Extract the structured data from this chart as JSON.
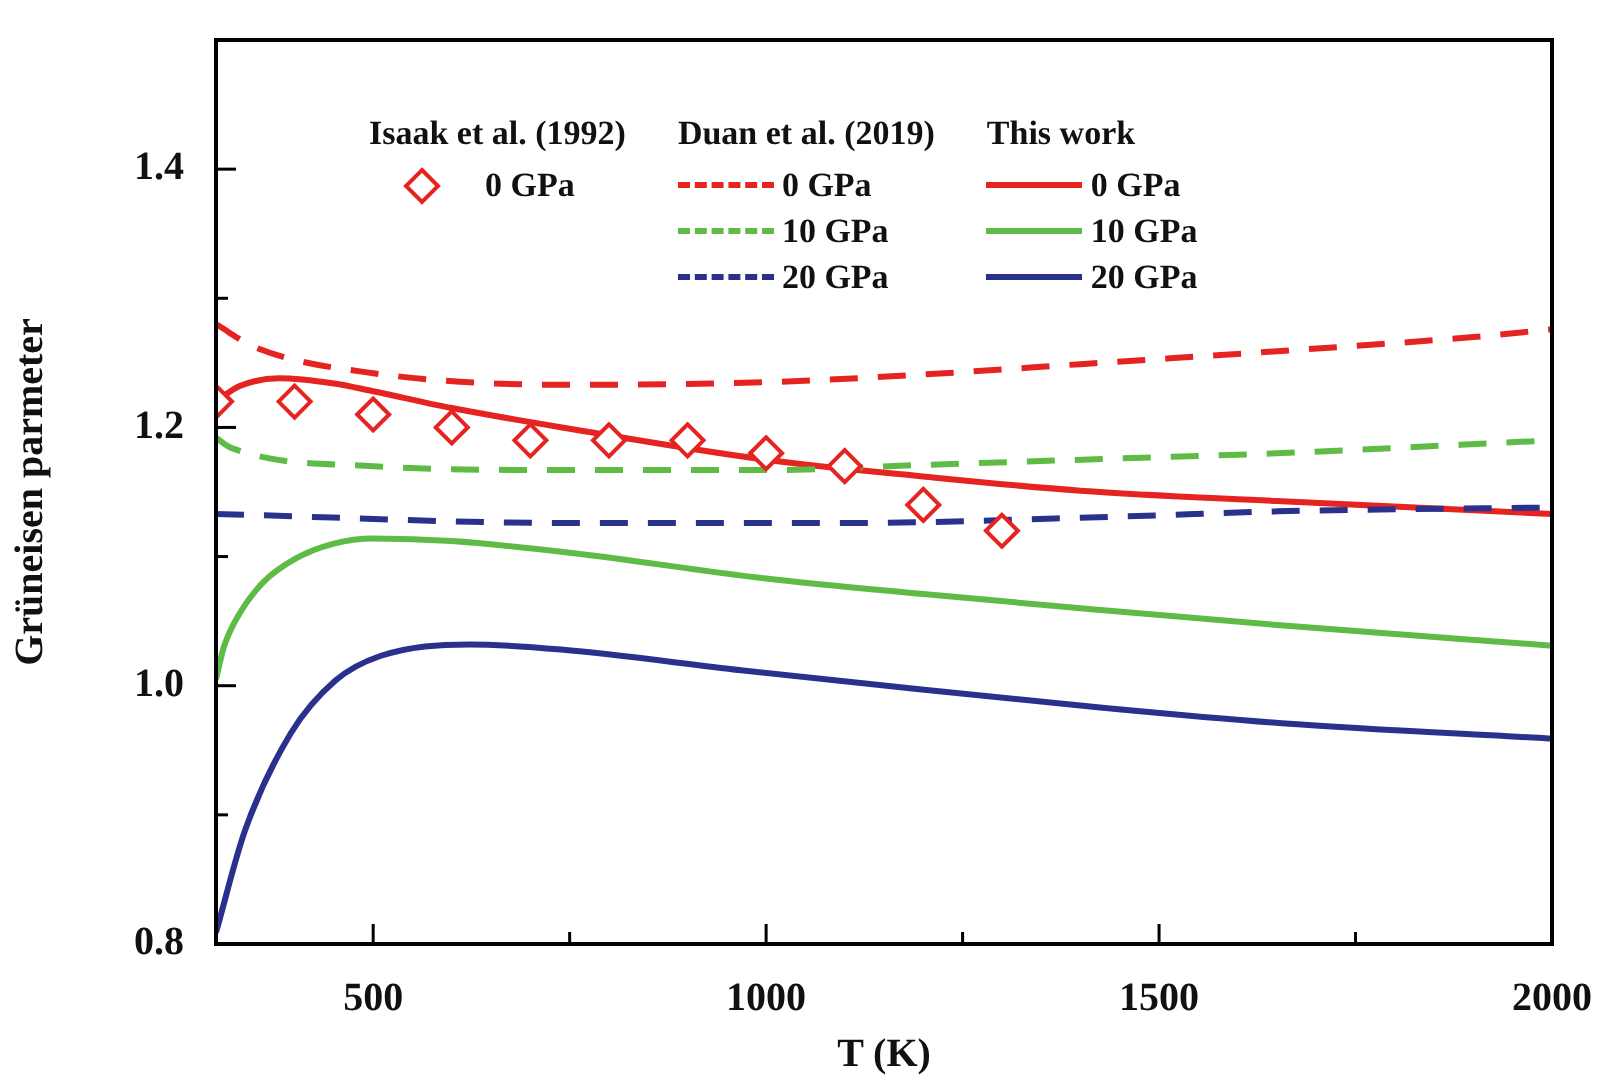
{
  "chart_data": {
    "type": "line",
    "xlabel": "T (K)",
    "ylabel": "Grüneisen parmeter",
    "xlim": [
      300,
      2000
    ],
    "ylim": [
      0.8,
      1.5
    ],
    "xticks": [
      500,
      {
        "value": 750,
        "label": null
      },
      1000,
      {
        "value": 1250,
        "label": null
      },
      1500,
      {
        "value": 1750,
        "label": null
      },
      2000
    ],
    "yticks": [
      {
        "value": 0.8,
        "label": "0.8"
      },
      {
        "value": 0.9,
        "label": null
      },
      {
        "value": 1.0,
        "label": "1.0"
      },
      {
        "value": 1.1,
        "label": null
      },
      {
        "value": 1.2,
        "label": "1.2"
      },
      {
        "value": 1.3,
        "label": null
      },
      {
        "value": 1.4,
        "label": "1.4"
      }
    ],
    "grid": false,
    "legend": "top",
    "annotations": [
      "Isaak et al. (1992)",
      "Duan et al. (2019)",
      "This work"
    ],
    "series": [
      {
        "name": "0 GPa",
        "type": "scatter",
        "marker": "diamond",
        "color": "#e52421",
        "x": [
          300,
          400,
          500,
          600,
          700,
          800,
          900,
          1000,
          1100,
          1200,
          1300
        ],
        "values": [
          1.22,
          1.22,
          1.21,
          1.2,
          1.19,
          1.19,
          1.19,
          1.18,
          1.17,
          1.14,
          1.12
        ]
      },
      {
        "name": "0 GPa",
        "line_style": "dashed",
        "color": "#e52421",
        "x": [
          300,
          350,
          500,
          750,
          1000,
          1200,
          1400,
          1650,
          1900,
          2000
        ],
        "values": [
          1.28,
          1.262,
          1.242,
          1.233,
          1.235,
          1.241,
          1.249,
          1.259,
          1.27,
          1.276
        ]
      },
      {
        "name": "10 GPa",
        "line_style": "dashed",
        "color": "#5dbb46",
        "x": [
          300,
          320,
          500,
          750,
          1000,
          1200,
          1450,
          1650,
          2000
        ],
        "values": [
          1.192,
          1.184,
          1.17,
          1.167,
          1.167,
          1.171,
          1.176,
          1.18,
          1.19
        ]
      },
      {
        "name": "20 GPa",
        "line_style": "dashed",
        "color": "#2a318c",
        "x": [
          300,
          750,
          1100,
          1450,
          1650,
          2000
        ],
        "values": [
          1.133,
          1.126,
          1.126,
          1.131,
          1.135,
          1.138
        ]
      },
      {
        "name": "0 GPa",
        "line_style": "solid",
        "color": "#e52421",
        "x": [
          300,
          330,
          380,
          450,
          500,
          600,
          750,
          1000,
          1200,
          1400,
          1650,
          2000
        ],
        "values": [
          1.22,
          1.232,
          1.238,
          1.234,
          1.228,
          1.215,
          1.199,
          1.175,
          1.162,
          1.151,
          1.143,
          1.133
        ]
      },
      {
        "name": "10 GPa",
        "line_style": "solid",
        "color": "#5dbb46",
        "x": [
          300,
          310,
          330,
          360,
          400,
          450,
          500,
          600,
          750,
          1000,
          1200,
          1400,
          1650,
          2000
        ],
        "values": [
          1.005,
          1.03,
          1.056,
          1.08,
          1.098,
          1.11,
          1.114,
          1.112,
          1.103,
          1.083,
          1.071,
          1.06,
          1.047,
          1.031
        ]
      },
      {
        "name": "20 GPa",
        "line_style": "solid",
        "color": "#2a318c",
        "x": [
          300,
          337,
          395,
          452,
          509,
          623,
          739,
          968,
          1198,
          1428,
          1656,
          2000
        ],
        "values": [
          0.809,
          0.888,
          0.963,
          1.004,
          1.023,
          1.032,
          1.028,
          1.012,
          0.997,
          0.983,
          0.971,
          0.959
        ]
      }
    ]
  }
}
